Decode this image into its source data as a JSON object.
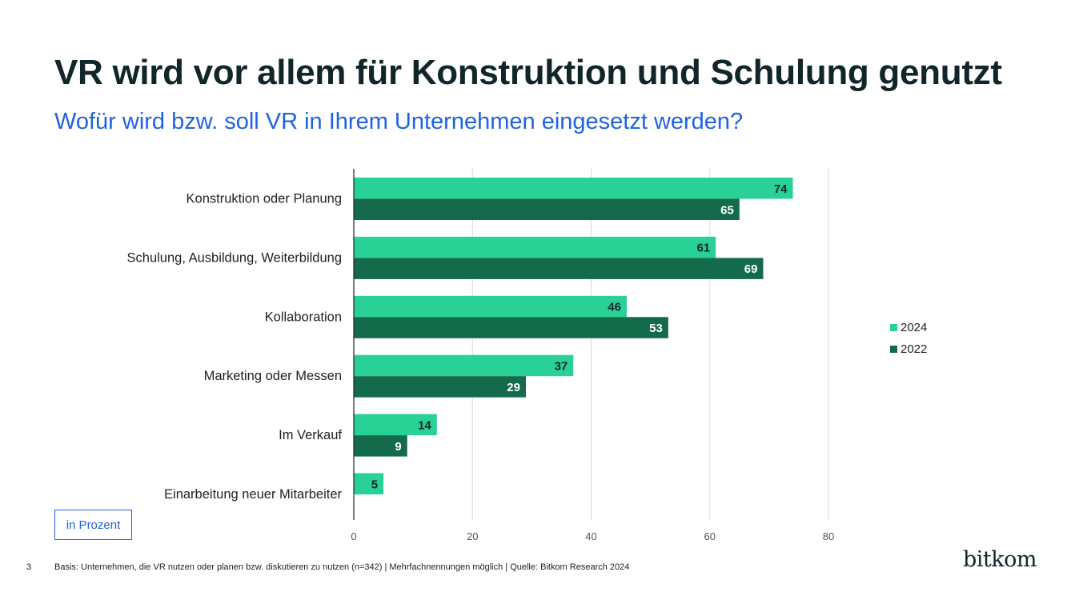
{
  "header": {
    "title": "VR wird vor allem für Konstruktion und Schulung genutzt",
    "subtitle": "Wofür wird bzw. soll VR in Ihrem Unternehmen eingesetzt werden?"
  },
  "unit_label": "in Prozent",
  "footer": {
    "page_number": "3",
    "source": "Basis: Unternehmen, die VR nutzen oder planen bzw. diskutieren zu nutzen (n=342) | Mehrfachnennungen möglich | Quelle: Bitkom Research 2024"
  },
  "logo_text": "bitkom",
  "chart_data": {
    "type": "bar",
    "orientation": "horizontal",
    "categories": [
      "Konstruktion oder Planung",
      "Schulung, Ausbildung, Weiterbildung",
      "Kollaboration",
      "Marketing oder Messen",
      "Im Verkauf",
      "Einarbeitung neuer Mitarbeiter"
    ],
    "series": [
      {
        "name": "2024",
        "color": "#2ad196",
        "label_color": "#10262b",
        "values": [
          74,
          61,
          46,
          37,
          14,
          5
        ]
      },
      {
        "name": "2022",
        "color": "#136b4b",
        "label_color": "#ffffff",
        "values": [
          65,
          69,
          53,
          29,
          9,
          null
        ]
      }
    ],
    "xlim": [
      0,
      80
    ],
    "xticks": [
      0,
      20,
      40,
      60,
      80
    ],
    "grid": true,
    "legend_position": "right"
  }
}
